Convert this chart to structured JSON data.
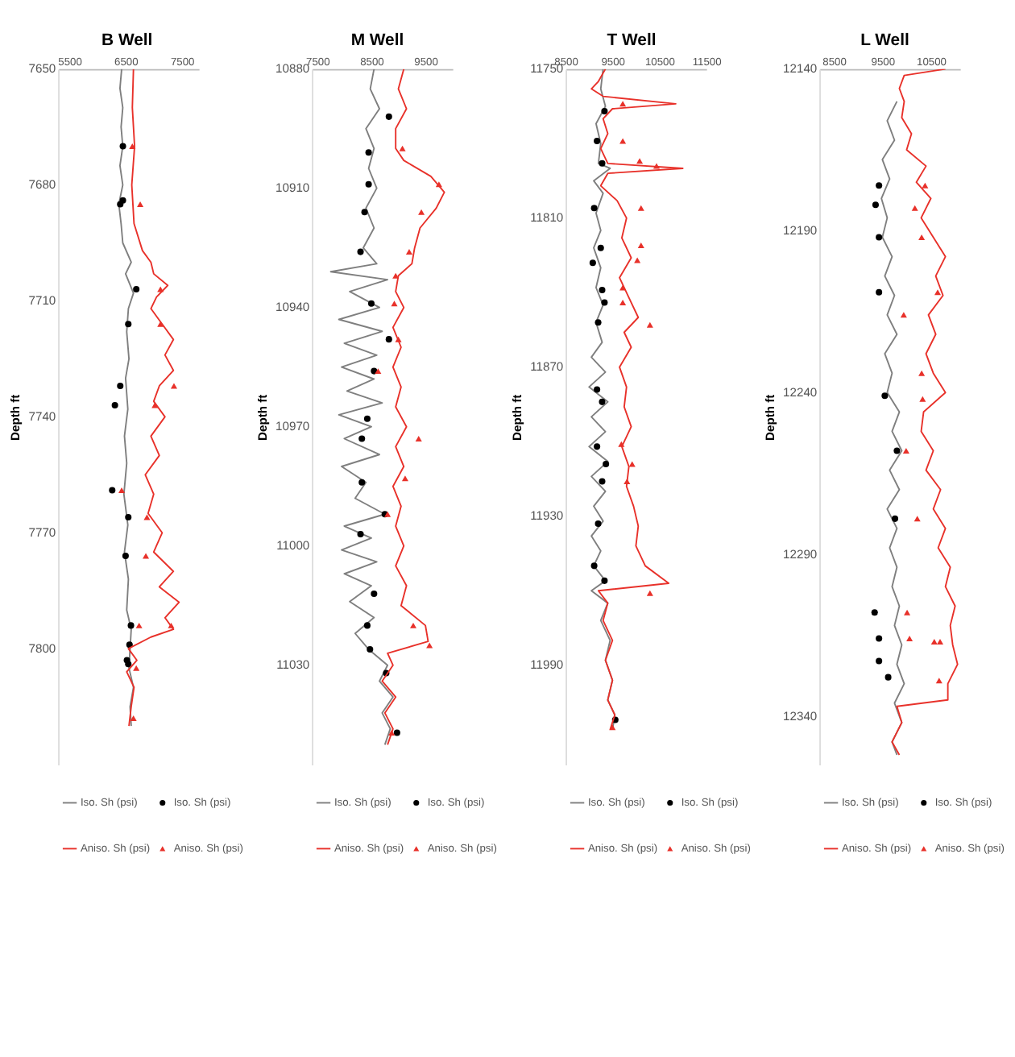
{
  "chart_data": [
    {
      "type": "line",
      "title": "B Well",
      "ylabel": "Depth ft",
      "xlim": [
        5300,
        7800
      ],
      "xticks": [
        5500,
        6500,
        7500
      ],
      "ylim": [
        7830,
        7650
      ],
      "yticks": [
        7650,
        7680,
        7710,
        7740,
        7770,
        7800
      ],
      "legend": "bottom",
      "series": [
        {
          "name": "Iso. Sh (psi)",
          "color": "#7f7f7f",
          "x": [
            6430,
            6400,
            6450,
            6420,
            6450,
            6400,
            6450,
            6380,
            6420,
            6450,
            6600,
            6500,
            6640,
            6550,
            6520,
            6560,
            6500,
            6540,
            6480,
            6520,
            6470,
            6540,
            6480,
            6550,
            6520,
            6600,
            6580,
            6560,
            6640,
            6580,
            6600
          ],
          "values": [
            7650,
            7655,
            7660,
            7665,
            7670,
            7675,
            7680,
            7685,
            7690,
            7695,
            7700,
            7703,
            7708,
            7712,
            7718,
            7725,
            7730,
            7738,
            7745,
            7752,
            7760,
            7768,
            7775,
            7782,
            7790,
            7795,
            7800,
            7805,
            7810,
            7815,
            7820
          ]
        },
        {
          "name": "Iso. Sh (psi)",
          "type": "scatter",
          "marker": "circle",
          "color": "#000000",
          "x": [
            6452,
            6405,
            6452,
            6690,
            6548,
            6405,
            6310,
            6262,
            6548,
            6500,
            6595,
            6570,
            6524,
            6548
          ],
          "values": [
            7670,
            7685,
            7684,
            7707,
            7716,
            7732,
            7737,
            7759,
            7766,
            7776,
            7794,
            7799,
            7803,
            7804
          ]
        },
        {
          "name": "Aniso. Sh (psi)",
          "color": "#e8312a",
          "x": [
            6640,
            6620,
            6660,
            6610,
            6650,
            6800,
            6950,
            7000,
            7250,
            7050,
            6950,
            7150,
            7350,
            7200,
            7350,
            7100,
            7000,
            7200,
            6950,
            7100,
            6850,
            7000,
            6900,
            7150,
            7000,
            7350,
            7100,
            7450,
            7200,
            7350,
            6950,
            6550,
            6700,
            6520,
            6650,
            6600,
            6560
          ],
          "values": [
            7650,
            7660,
            7670,
            7680,
            7690,
            7697,
            7700,
            7703,
            7706,
            7709,
            7712,
            7716,
            7720,
            7724,
            7728,
            7732,
            7736,
            7740,
            7745,
            7750,
            7755,
            7760,
            7765,
            7770,
            7775,
            7780,
            7784,
            7788,
            7792,
            7795,
            7797,
            7800,
            7803,
            7806,
            7810,
            7815,
            7820
          ]
        },
        {
          "name": "Aniso. Sh (psi)",
          "type": "scatter",
          "marker": "triangle",
          "color": "#e8312a",
          "x": [
            6620,
            6760,
            7120,
            7120,
            7360,
            7020,
            6430,
            6880,
            6860,
            7310,
            6740,
            6690,
            6640
          ],
          "values": [
            7670,
            7685,
            7707,
            7716,
            7732,
            7737,
            7759,
            7766,
            7776,
            7794,
            7794,
            7805,
            7818
          ]
        }
      ]
    },
    {
      "type": "line",
      "title": "M Well",
      "ylabel": "Depth ft",
      "xlim": [
        7400,
        10000
      ],
      "xticks": [
        7500,
        8500,
        9500
      ],
      "ylim": [
        11055,
        10880
      ],
      "yticks": [
        10880,
        10910,
        10940,
        10970,
        11000,
        11030
      ],
      "legend": "bottom",
      "series": [
        {
          "name": "Iso. Sh (psi)",
          "color": "#7f7f7f",
          "x": [
            8550,
            8480,
            8650,
            8400,
            8550,
            8450,
            8600,
            8400,
            8550,
            8350,
            8600,
            7750,
            8800,
            8100,
            8650,
            7900,
            8700,
            8000,
            8600,
            7950,
            8550,
            8050,
            8700,
            7900,
            8500,
            8000,
            8650,
            7950,
            8400,
            8200,
            8750,
            8000,
            8500,
            7950,
            8600,
            8000,
            8500,
            8100,
            8550,
            8200,
            8450,
            8800,
            8650,
            8900,
            8700,
            8850,
            8750
          ],
          "values": [
            10880,
            10885,
            10890,
            10895,
            10900,
            10905,
            10910,
            10915,
            10920,
            10925,
            10929,
            10931,
            10933,
            10936,
            10940,
            10943,
            10946,
            10949,
            10952,
            10955,
            10958,
            10961,
            10964,
            10967,
            10970,
            10973,
            10977,
            10980,
            10984,
            10988,
            10992,
            10995,
            10998,
            11001,
            11004,
            11007,
            11010,
            11014,
            11018,
            11022,
            11026,
            11030,
            11034,
            11038,
            11042,
            11046,
            11050
          ]
        },
        {
          "name": "Iso. Sh (psi)",
          "type": "scatter",
          "marker": "circle",
          "color": "#000000",
          "x": [
            8825,
            8450,
            8450,
            8375,
            8300,
            8500,
            8825,
            8550,
            8425,
            8325,
            8325,
            8750,
            8300,
            8550,
            8425,
            8475,
            8775,
            8975
          ],
          "values": [
            10892,
            10901,
            10909,
            10916,
            10926,
            10939,
            10948,
            10956,
            10968,
            10973,
            10984,
            10992,
            10997,
            11012,
            11020,
            11026,
            11032,
            11047
          ]
        },
        {
          "name": "Aniso. Sh (psi)",
          "color": "#e8312a",
          "x": [
            9100,
            9000,
            9150,
            8950,
            8950,
            9100,
            9600,
            9850,
            9700,
            9400,
            9300,
            9250,
            9000,
            8950,
            9100,
            8900,
            9050,
            8900,
            9050,
            8950,
            9150,
            8950,
            9100,
            8900,
            9050,
            8950,
            9100,
            8950,
            9150,
            9050,
            9500,
            9550,
            8800,
            8900,
            8700,
            8950,
            8750,
            8900,
            8800
          ],
          "values": [
            10880,
            10885,
            10890,
            10895,
            10900,
            10903,
            10907,
            10911,
            10915,
            10920,
            10925,
            10929,
            10932,
            10936,
            10940,
            10945,
            10950,
            10955,
            10960,
            10965,
            10970,
            10975,
            10980,
            10985,
            10990,
            10995,
            11000,
            11005,
            11010,
            11015,
            11020,
            11024,
            11027,
            11030,
            11034,
            11038,
            11042,
            11046,
            11050
          ]
        },
        {
          "name": "Aniso. Sh (psi)",
          "type": "scatter",
          "marker": "triangle",
          "color": "#e8312a",
          "x": [
            9075,
            9750,
            9425,
            9200,
            8950,
            8925,
            9000,
            8625,
            9375,
            9125,
            8800,
            9275,
            9575,
            8875
          ],
          "values": [
            10900,
            10909,
            10916,
            10926,
            10932,
            10939,
            10948,
            10956,
            10973,
            10983,
            10992,
            11020,
            11025,
            11047
          ]
        }
      ]
    },
    {
      "type": "line",
      "title": "T Well",
      "ylabel": "Depth ft",
      "xlim": [
        8500,
        11500
      ],
      "xticks": [
        8500,
        9500,
        10500,
        11500
      ],
      "ylim": [
        12030,
        11750
      ],
      "yticks": [
        11750,
        11810,
        11870,
        11930,
        11990
      ],
      "legend": "bottom",
      "series": [
        {
          "name": "Iso. Sh (psi)",
          "color": "#7f7f7f",
          "x": [
            9300,
            9250,
            9350,
            9150,
            9250,
            9200,
            9450,
            9100,
            9300,
            9150,
            9250,
            9100,
            9250,
            9150,
            9300,
            9150,
            9280,
            9050,
            9350,
            9000,
            9400,
            9050,
            9350,
            9000,
            9400,
            9050,
            9350,
            9100,
            9300,
            9050,
            9250,
            9100,
            9350,
            9050,
            9400,
            9250,
            9450,
            9350,
            9500,
            9400,
            9550,
            9500
          ],
          "values": [
            11750,
            11758,
            11765,
            11772,
            11780,
            11788,
            11790,
            11795,
            11800,
            11808,
            11815,
            11822,
            11830,
            11838,
            11845,
            11852,
            11860,
            11866,
            11872,
            11878,
            11884,
            11890,
            11896,
            11902,
            11908,
            11914,
            11920,
            11926,
            11932,
            11938,
            11944,
            11950,
            11956,
            11960,
            11965,
            11972,
            11980,
            11988,
            11996,
            12004,
            12010,
            12016
          ]
        },
        {
          "name": "Iso. Sh (psi)",
          "type": "scatter",
          "marker": "circle",
          "color": "#000000",
          "x": [
            9330,
            9170,
            9280,
            9110,
            9250,
            9080,
            9280,
            9330,
            9195,
            9170,
            9280,
            9170,
            9360,
            9280,
            9195,
            9110,
            9330,
            9560
          ],
          "values": [
            11767,
            11779,
            11788,
            11806,
            11822,
            11828,
            11839,
            11844,
            11852,
            11879,
            11884,
            11902,
            11909,
            11916,
            11933,
            11950,
            11956,
            12012
          ]
        },
        {
          "name": "Aniso. Sh (psi)",
          "color": "#e8312a",
          "x": [
            9350,
            9200,
            9050,
            9300,
            10850,
            9500,
            9300,
            9400,
            9250,
            9400,
            11000,
            9400,
            9250,
            9600,
            9800,
            9700,
            9900,
            9650,
            9850,
            10050,
            9750,
            9900,
            9650,
            9800,
            9750,
            9900,
            9700,
            9850,
            9800,
            9950,
            10050,
            10000,
            10200,
            10700,
            9200,
            9400,
            9300,
            9500,
            9350,
            9500,
            9400,
            9550,
            9450
          ],
          "values": [
            11750,
            11755,
            11758,
            11761,
            11764,
            11766,
            11770,
            11776,
            11782,
            11788,
            11790,
            11792,
            11797,
            11803,
            11810,
            11818,
            11826,
            11834,
            11842,
            11850,
            11856,
            11862,
            11870,
            11878,
            11886,
            11894,
            11902,
            11910,
            11918,
            11926,
            11934,
            11942,
            11950,
            11957,
            11960,
            11965,
            11972,
            11980,
            11988,
            11996,
            12004,
            12010,
            12016
          ]
        },
        {
          "name": "Aniso. Sh (psi)",
          "type": "scatter",
          "marker": "triangle",
          "color": "#e8312a",
          "x": [
            9720,
            9720,
            10080,
            10440,
            10110,
            10110,
            10030,
            9720,
            9720,
            10300,
            9690,
            9920,
            9810,
            10300,
            9500
          ],
          "values": [
            11764,
            11779,
            11787,
            11789,
            11806,
            11821,
            11827,
            11838,
            11844,
            11853,
            11901,
            11909,
            11916,
            11961,
            12015
          ]
        }
      ]
    },
    {
      "type": "line",
      "title": "L Well",
      "ylabel": "Depth ft",
      "xlim": [
        8200,
        11100
      ],
      "xticks": [
        8500,
        9500,
        10500
      ],
      "ylim": [
        12355,
        12140
      ],
      "yticks": [
        12140,
        12190,
        12240,
        12290,
        12340
      ],
      "legend": "bottom",
      "series": [
        {
          "name": "Iso. Sh (psi)",
          "color": "#7f7f7f",
          "x": [
            9800,
            9600,
            9750,
            9500,
            9650,
            9480,
            9600,
            9500,
            9700,
            9550,
            9750,
            9600,
            9800,
            9550,
            9700,
            9600,
            9850,
            9700,
            9900,
            9650,
            9850,
            9600,
            9800,
            9650,
            9800,
            9700,
            9850,
            9750,
            9900,
            9800,
            9950,
            9750,
            9900,
            9700,
            9800
          ],
          "values": [
            12150,
            12156,
            12162,
            12168,
            12174,
            12180,
            12186,
            12192,
            12198,
            12204,
            12210,
            12216,
            12222,
            12228,
            12234,
            12240,
            12246,
            12252,
            12258,
            12264,
            12270,
            12276,
            12282,
            12288,
            12294,
            12300,
            12306,
            12312,
            12318,
            12324,
            12330,
            12336,
            12342,
            12348,
            12352
          ]
        },
        {
          "name": "Iso. Sh (psi)",
          "type": "scatter",
          "marker": "circle",
          "color": "#000000",
          "x": [
            9430,
            9360,
            9430,
            9430,
            9550,
            9800,
            9760,
            9340,
            9430,
            9430,
            9620
          ],
          "values": [
            12176,
            12182,
            12192,
            12209,
            12241,
            12258,
            12279,
            12308,
            12316,
            12323,
            12328
          ]
        },
        {
          "name": "Aniso. Sh (psi)",
          "color": "#e8312a",
          "x": [
            10800,
            9950,
            9850,
            9950,
            9900,
            10100,
            10000,
            10400,
            10200,
            10500,
            10300,
            10550,
            10800,
            10600,
            10750,
            10450,
            10600,
            10400,
            10550,
            10800,
            10350,
            10300,
            10550,
            10400,
            10700,
            10550,
            10800,
            10650,
            10900,
            10800,
            11000,
            10900,
            10950,
            11050,
            10850,
            10850,
            9800,
            9900,
            9700,
            9850
          ],
          "values": [
            12140,
            12142,
            12146,
            12150,
            12155,
            12160,
            12165,
            12170,
            12175,
            12180,
            12186,
            12192,
            12198,
            12204,
            12210,
            12216,
            12222,
            12228,
            12234,
            12240,
            12246,
            12252,
            12258,
            12264,
            12270,
            12276,
            12282,
            12288,
            12294,
            12300,
            12306,
            12312,
            12318,
            12324,
            12330,
            12335,
            12337,
            12342,
            12348,
            12352
          ]
        },
        {
          "name": "Aniso. Sh (psi)",
          "type": "scatter",
          "marker": "triangle",
          "color": "#e8312a",
          "x": [
            10380,
            10170,
            10310,
            10640,
            9940,
            10310,
            10330,
            9990,
            10220,
            10010,
            10060,
            10570,
            10690,
            10670
          ],
          "values": [
            12176,
            12183,
            12192,
            12209,
            12216,
            12234,
            12242,
            12258,
            12279,
            12308,
            12316,
            12317,
            12317,
            12329
          ]
        }
      ]
    }
  ]
}
